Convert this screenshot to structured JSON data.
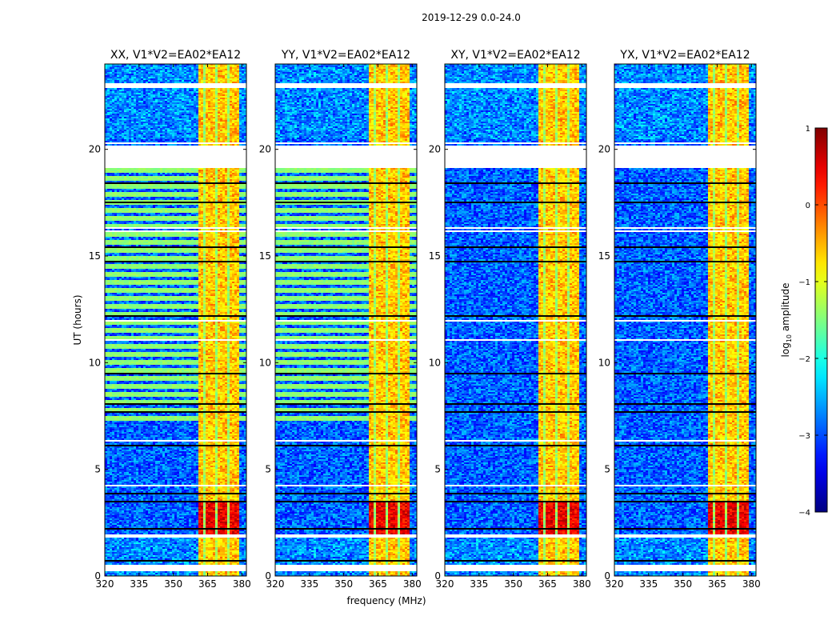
{
  "chart_data": {
    "type": "heatmap",
    "suptitle": "2019-12-29 0.0-24.0",
    "xlabel": "frequency (MHz)",
    "ylabel": "UT (hours)",
    "xlim": [
      320,
      382
    ],
    "ylim": [
      0,
      24
    ],
    "xticks": [
      320,
      335,
      350,
      365,
      380
    ],
    "yticks": [
      0,
      5,
      10,
      15,
      20
    ],
    "xtick_labels": [
      "320",
      "335",
      "350",
      "365",
      "380"
    ],
    "ytick_labels": [
      "0",
      "5",
      "10",
      "15",
      "20"
    ],
    "panels": [
      {
        "title": "XX, V1*V2=EA02*EA12",
        "pol": "XX",
        "green_band_hours": [
          [
            7.2,
            19.2
          ]
        ]
      },
      {
        "title": "YY, V1*V2=EA02*EA12",
        "pol": "YY",
        "green_band_hours": [
          [
            7.2,
            19.2
          ]
        ]
      },
      {
        "title": "XY, V1*V2=EA02*EA12",
        "pol": "XY",
        "green_band_hours": []
      },
      {
        "title": "YX, V1*V2=EA02*EA12",
        "pol": "YX",
        "green_band_hours": []
      }
    ],
    "bright_band_mhz": [
      360.5,
      373
    ],
    "bright_channels_mhz": [
      [
        360.5,
        362.5
      ],
      [
        363.5,
        367.5
      ],
      [
        368.5,
        373
      ],
      [
        374,
        378.5
      ]
    ],
    "flagged_white_hours": [
      [
        19.2,
        20.2
      ],
      [
        0.3,
        0.6
      ],
      [
        1.8,
        2.0
      ],
      [
        22.9,
        23.1
      ]
    ],
    "colorbar": {
      "label_prefix": "log",
      "label_sub": "10",
      "label_suffix": " amplitude",
      "range": [
        -4,
        1
      ],
      "ticks": [
        1,
        0,
        -1,
        -2,
        -3,
        -4
      ],
      "tick_labels": [
        "1",
        "0",
        "−1",
        "−2",
        "−3",
        "−4"
      ],
      "colormap": "jet"
    }
  }
}
